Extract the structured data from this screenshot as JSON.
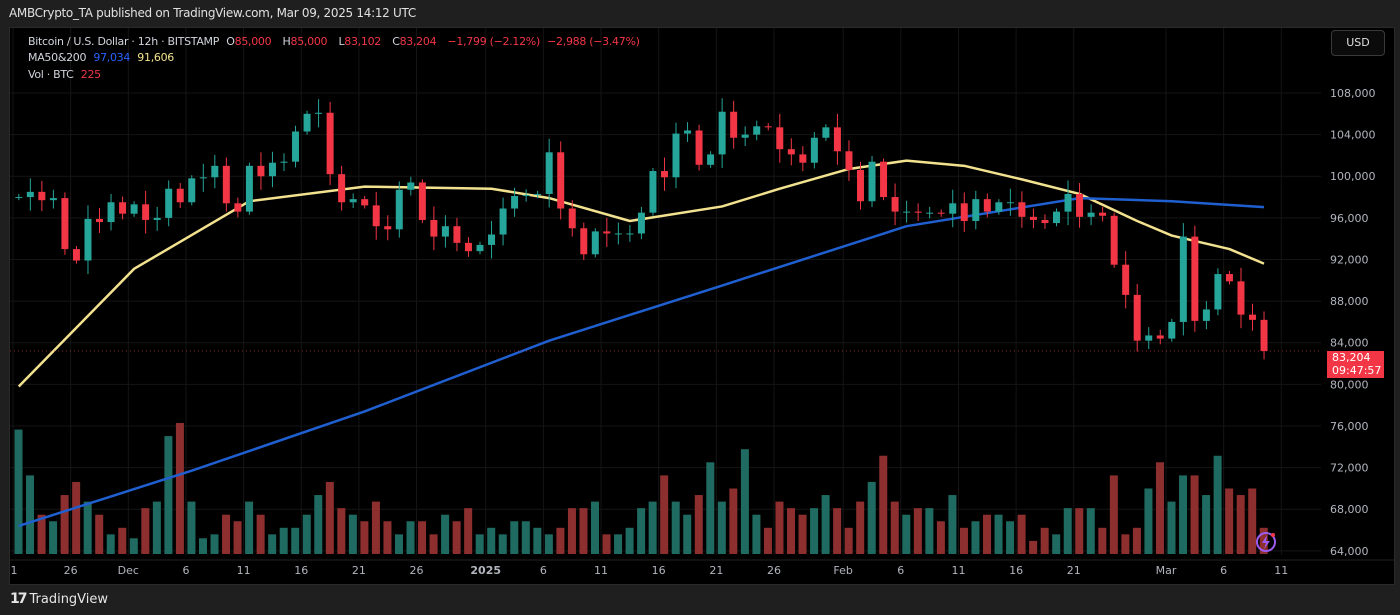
{
  "publish_line": "AMBCrypto_TA published on TradingView.com, Mar 09, 2025 14:12 UTC",
  "legend": {
    "symbol": "Bitcoin / U.S. Dollar · 12h · BITSTAMP",
    "o_label": "O",
    "o": "85,000",
    "h_label": "H",
    "h": "85,000",
    "l_label": "L",
    "l": "83,102",
    "c_label": "C",
    "c": "83,204",
    "change": "−1,799 (−2.12%)",
    "change2": "−2,988 (−3.47%)",
    "ma_label": "MA50&200",
    "ma200_value": "97,034",
    "ma50_value": "91,606",
    "vol_label": "Vol · BTC",
    "vol_value": "225"
  },
  "currency_button": "USD",
  "last_price": {
    "price": "83,204",
    "countdown": "09:47:57"
  },
  "footer_brand": "TradingView",
  "colors": {
    "up": "#26a69a",
    "down": "#f23645",
    "vol_up": "#1f6b61",
    "vol_down": "#8e2f2f",
    "ma50": "#f2e28f",
    "ma200": "#1f5fd0",
    "background": "#000000"
  },
  "icons": {
    "footer_logo": "tradingview-logo-icon",
    "assistant": "lightning-sparkle-icon"
  },
  "chart_data": {
    "type": "candlestick",
    "interval": "12h",
    "symbol": "BTC/USD",
    "ylim": [
      62000,
      110000
    ],
    "y_ticks": [
      "108,000",
      "104,000",
      "100,000",
      "96,000",
      "92,000",
      "88,000",
      "84,000",
      "80,000",
      "76,000",
      "72,000",
      "68,000",
      "64,000"
    ],
    "y_tick_values": [
      108000,
      104000,
      100000,
      96000,
      92000,
      88000,
      84000,
      80000,
      76000,
      72000,
      68000,
      64000
    ],
    "x_ticks": [
      {
        "label": "1",
        "date": "2024-11-21"
      },
      {
        "label": "26",
        "date": "2024-11-26"
      },
      {
        "label": "Dec",
        "date": "2024-12-01"
      },
      {
        "label": "6",
        "date": "2024-12-06"
      },
      {
        "label": "11",
        "date": "2024-12-11"
      },
      {
        "label": "16",
        "date": "2024-12-16"
      },
      {
        "label": "21",
        "date": "2024-12-21"
      },
      {
        "label": "26",
        "date": "2024-12-26"
      },
      {
        "label": "2025",
        "date": "2025-01-01"
      },
      {
        "label": "6",
        "date": "2025-01-06"
      },
      {
        "label": "11",
        "date": "2025-01-11"
      },
      {
        "label": "16",
        "date": "2025-01-16"
      },
      {
        "label": "21",
        "date": "2025-01-21"
      },
      {
        "label": "26",
        "date": "2025-01-26"
      },
      {
        "label": "Feb",
        "date": "2025-02-01"
      },
      {
        "label": "6",
        "date": "2025-02-06"
      },
      {
        "label": "11",
        "date": "2025-02-11"
      },
      {
        "label": "16",
        "date": "2025-02-16"
      },
      {
        "label": "21",
        "date": "2025-02-21"
      },
      {
        "label": "Mar",
        "date": "2025-03-01"
      },
      {
        "label": "6",
        "date": "2025-03-06"
      },
      {
        "label": "11",
        "date": "2025-03-11"
      }
    ],
    "first_date": "2024-11-21",
    "closes": [
      98000,
      98500,
      97700,
      97900,
      93000,
      91900,
      95900,
      95600,
      97500,
      96400,
      97300,
      95800,
      96000,
      98800,
      97500,
      99800,
      99900,
      101000,
      97400,
      96600,
      101000,
      100000,
      101300,
      101400,
      104300,
      106000,
      106100,
      100200,
      97500,
      97800,
      97200,
      95200,
      94900,
      98700,
      99400,
      95800,
      94200,
      95200,
      93600,
      92800,
      93400,
      94400,
      96900,
      98100,
      98200,
      98300,
      102300,
      96900,
      95000,
      92500,
      94700,
      94500,
      94500,
      94500,
      96500,
      100500,
      99900,
      104100,
      104400,
      101100,
      102100,
      106200,
      103700,
      104000,
      104800,
      104700,
      102600,
      102100,
      101300,
      103700,
      104700,
      102400,
      100600,
      97600,
      101400,
      98000,
      96600,
      96600,
      96500,
      96500,
      96400,
      97400,
      95700,
      97800,
      96600,
      97500,
      97500,
      96100,
      95800,
      95500,
      96600,
      98300,
      96100,
      96500,
      96200,
      91500,
      88600,
      84200,
      84700,
      84400,
      86000,
      94200,
      86100,
      87200,
      90600,
      89900,
      86700,
      86200,
      83204
    ],
    "volume_relative": [
      95,
      60,
      30,
      25,
      45,
      55,
      40,
      30,
      15,
      20,
      12,
      35,
      40,
      90,
      100,
      40,
      12,
      15,
      30,
      25,
      40,
      30,
      15,
      20,
      20,
      30,
      45,
      55,
      35,
      30,
      25,
      40,
      25,
      15,
      25,
      25,
      15,
      30,
      25,
      35,
      15,
      20,
      15,
      25,
      25,
      20,
      15,
      20,
      35,
      35,
      40,
      15,
      15,
      20,
      35,
      40,
      60,
      40,
      30,
      45,
      70,
      40,
      50,
      80,
      30,
      20,
      40,
      35,
      30,
      35,
      45,
      35,
      20,
      40,
      55,
      75,
      40,
      30,
      35,
      35,
      25,
      45,
      20,
      25,
      30,
      30,
      25,
      30,
      10,
      20,
      15,
      35,
      35,
      35,
      20,
      60,
      15,
      20,
      50,
      70,
      40,
      60,
      60,
      45,
      75,
      50,
      45,
      50,
      20
    ],
    "series": [
      {
        "name": "MA50",
        "points": [
          [
            "2024-11-21",
            79800
          ],
          [
            "2024-12-01",
            91100
          ],
          [
            "2024-12-11",
            97600
          ],
          [
            "2024-12-21",
            99000
          ],
          [
            "2025-01-01",
            98800
          ],
          [
            "2025-01-06",
            97900
          ],
          [
            "2025-01-13",
            95700
          ],
          [
            "2025-01-21",
            97100
          ],
          [
            "2025-01-26",
            98800
          ],
          [
            "2025-02-01",
            100700
          ],
          [
            "2025-02-06",
            101500
          ],
          [
            "2025-02-11",
            101000
          ],
          [
            "2025-02-16",
            99700
          ],
          [
            "2025-02-21",
            98300
          ],
          [
            "2025-02-26",
            95700
          ],
          [
            "2025-03-01",
            94300
          ],
          [
            "2025-03-06",
            93000
          ],
          [
            "2025-03-09",
            91606
          ]
        ]
      },
      {
        "name": "MA200",
        "points": [
          [
            "2024-11-21",
            66400
          ],
          [
            "2024-12-06",
            71700
          ],
          [
            "2024-12-21",
            77400
          ],
          [
            "2025-01-06",
            84200
          ],
          [
            "2025-01-21",
            89500
          ],
          [
            "2025-02-06",
            95200
          ],
          [
            "2025-02-21",
            97900
          ],
          [
            "2025-03-01",
            97600
          ],
          [
            "2025-03-09",
            97034
          ]
        ]
      }
    ],
    "grid": true
  }
}
